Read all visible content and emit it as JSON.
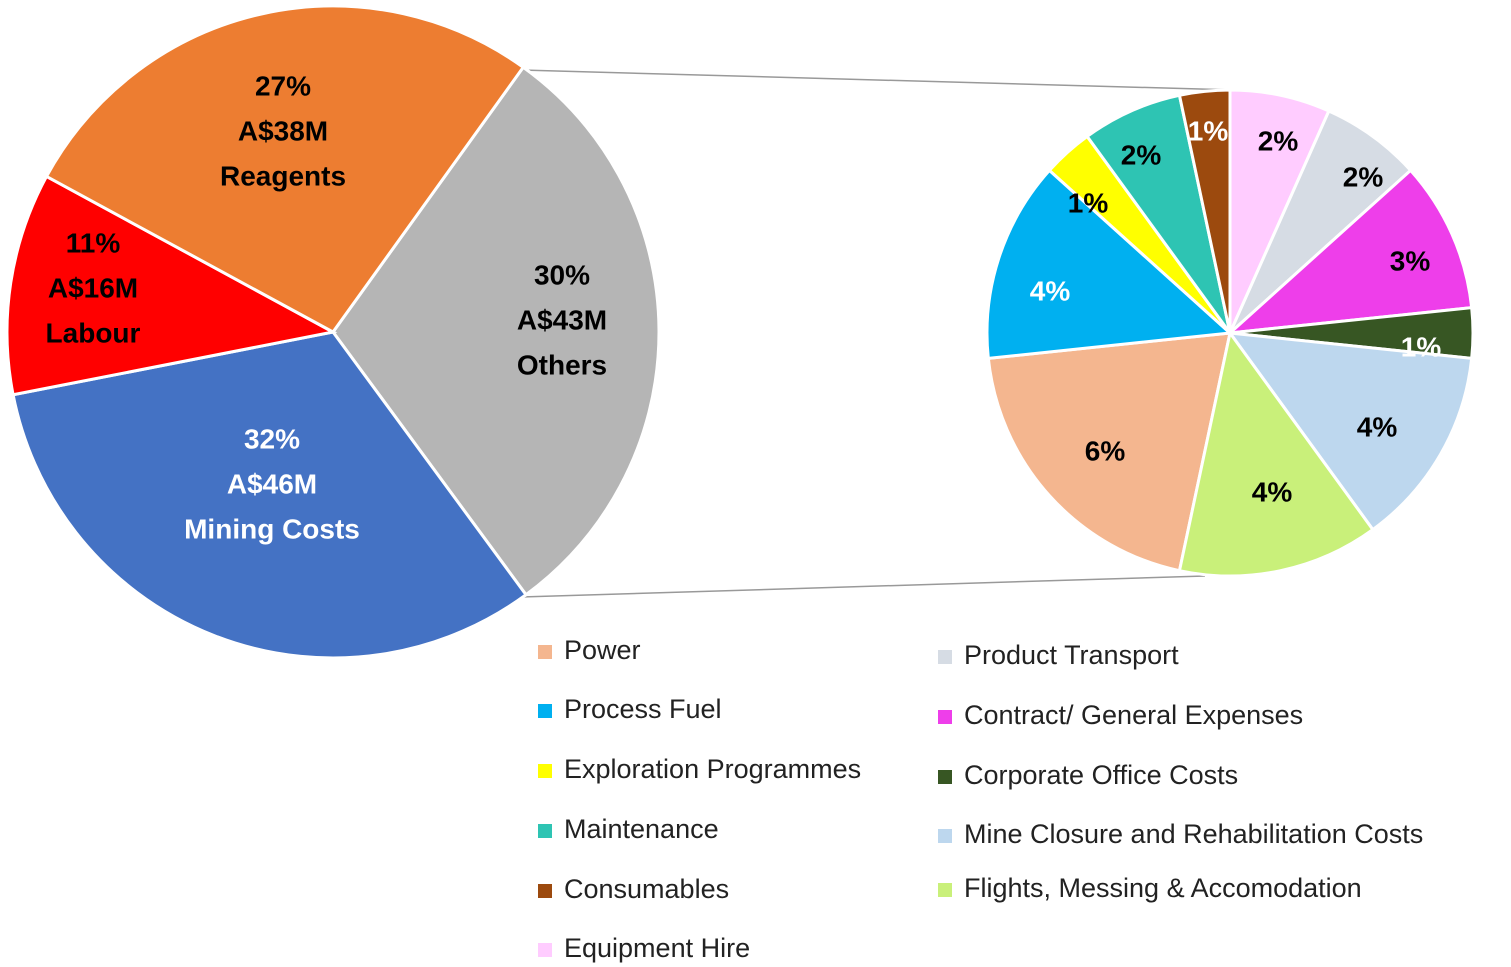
{
  "chart_data": [
    {
      "type": "pie",
      "categories": [
        "Others",
        "Mining Costs",
        "Labour",
        "Reagents"
      ],
      "values": [
        30,
        32,
        11,
        27
      ],
      "value_labels": [
        "30%",
        "32%",
        "11%",
        "27%"
      ],
      "amounts": [
        43,
        46,
        16,
        38
      ],
      "amount_labels": [
        "A$43M",
        "A$46M",
        "A$16M",
        "A$38M"
      ],
      "colors": [
        "#b5b5b5",
        "#4472c4",
        "#ff0000",
        "#ed7d31"
      ]
    },
    {
      "type": "pie",
      "categories": [
        "Power",
        "Process Fuel",
        "Exploration Programmes",
        "Maintenance",
        "Consumables",
        "Equipment Hire",
        "Product Transport",
        "Contract/ General Expenses",
        "Corporate Office Costs",
        "Mine Closure and Rehabilitation Costs",
        "Flights, Messing & Accomodation"
      ],
      "values": [
        6,
        4,
        1,
        2,
        1,
        2,
        2,
        3,
        1,
        4,
        4
      ],
      "value_labels": [
        "6%",
        "4%",
        "1%",
        "2%",
        "1%",
        "2%",
        "2%",
        "3%",
        "1%",
        "4%",
        "4%"
      ],
      "colors": [
        "#f4b68f",
        "#00b0f0",
        "#ffff00",
        "#2ec4b3",
        "#9c4a0e",
        "#ffccff",
        "#d6dce4",
        "#ee3eea",
        "#375623",
        "#bdd7ee",
        "#c9f07a"
      ]
    }
  ]
}
